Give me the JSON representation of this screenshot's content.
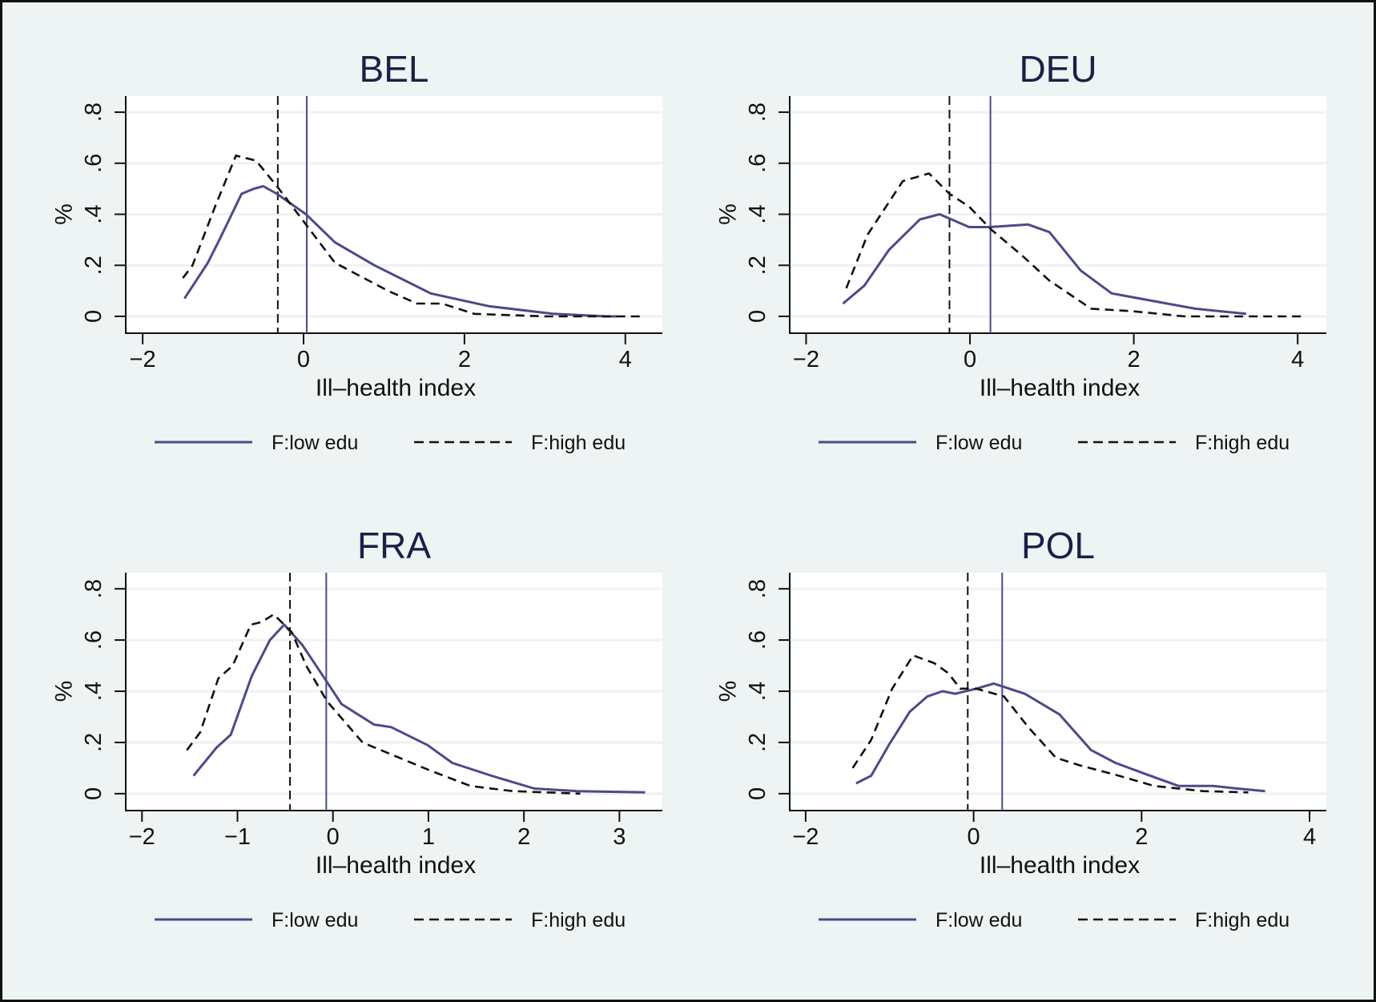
{
  "figure": {
    "background": "#eef4f4",
    "plot_background": "#ffffff",
    "grid_color": "#eef2f2",
    "colors": {
      "low_edu": "#4b4a8a",
      "high_edu": "#111111",
      "title": "#1d1f45"
    }
  },
  "chart_data": [
    {
      "type": "line",
      "title": "BEL",
      "xlabel": "Ill–health index",
      "ylabel": "%",
      "xlim": [
        -2.21,
        4.46
      ],
      "ylim": [
        -0.066,
        0.863
      ],
      "xticks": [
        -2,
        0,
        2,
        4
      ],
      "xtick_labels": [
        "−2",
        "0",
        "2",
        "4"
      ],
      "yticks": [
        0,
        0.2,
        0.4,
        0.6,
        0.8
      ],
      "ytick_labels": [
        "0",
        ".2",
        ".4",
        ".6",
        ".8"
      ],
      "grid": true,
      "legend": {
        "position": "bottom",
        "entries": [
          "F:low edu",
          "F:high edu"
        ]
      },
      "vlines": [
        {
          "series": "F:high edu",
          "x": -0.32,
          "style": "dashed"
        },
        {
          "series": "F:low edu",
          "x": 0.04,
          "style": "solid"
        }
      ],
      "series": [
        {
          "name": "F:low edu",
          "style": "solid",
          "x": [
            -1.48,
            -1.19,
            -1.03,
            -0.77,
            -0.62,
            -0.5,
            -0.33,
            0.03,
            0.39,
            0.88,
            1.58,
            2.3,
            3.1,
            3.76,
            3.9
          ],
          "y": [
            0.07,
            0.21,
            0.31,
            0.48,
            0.5,
            0.51,
            0.48,
            0.4,
            0.29,
            0.2,
            0.09,
            0.04,
            0.01,
            0.0,
            0.0
          ]
        },
        {
          "name": "F:high edu",
          "style": "dashed",
          "x": [
            -1.5,
            -1.38,
            -1.1,
            -0.84,
            -0.59,
            -0.33,
            0.03,
            0.39,
            1.05,
            1.41,
            1.72,
            2.12,
            3.0,
            4.2
          ],
          "y": [
            0.15,
            0.2,
            0.43,
            0.63,
            0.61,
            0.51,
            0.36,
            0.21,
            0.1,
            0.05,
            0.05,
            0.01,
            0.0,
            0.0
          ]
        }
      ]
    },
    {
      "type": "line",
      "title": "DEU",
      "xlabel": "Ill–health index",
      "ylabel": "%",
      "xlim": [
        -2.2,
        4.35
      ],
      "ylim": [
        -0.066,
        0.863
      ],
      "xticks": [
        -2,
        0,
        2,
        4
      ],
      "xtick_labels": [
        "−2",
        "0",
        "2",
        "4"
      ],
      "yticks": [
        0,
        0.2,
        0.4,
        0.6,
        0.8
      ],
      "ytick_labels": [
        "0",
        ".2",
        ".4",
        ".6",
        ".8"
      ],
      "grid": true,
      "legend": {
        "position": "bottom",
        "entries": [
          "F:low edu",
          "F:high edu"
        ]
      },
      "vlines": [
        {
          "series": "F:high edu",
          "x": -0.25,
          "style": "dashed"
        },
        {
          "series": "F:low edu",
          "x": 0.25,
          "style": "solid"
        }
      ],
      "series": [
        {
          "name": "F:low edu",
          "style": "solid",
          "x": [
            -1.55,
            -1.29,
            -0.99,
            -0.61,
            -0.37,
            -0.01,
            0.24,
            0.71,
            0.97,
            1.35,
            1.73,
            2.24,
            2.75,
            3.37
          ],
          "y": [
            0.05,
            0.12,
            0.26,
            0.38,
            0.4,
            0.35,
            0.35,
            0.36,
            0.33,
            0.18,
            0.09,
            0.06,
            0.03,
            0.01
          ]
        },
        {
          "name": "F:high edu",
          "style": "dashed",
          "x": [
            -1.51,
            -1.25,
            -0.82,
            -0.5,
            -0.25,
            -0.01,
            0.26,
            0.63,
            0.97,
            1.48,
            1.99,
            2.62,
            4.09
          ],
          "y": [
            0.11,
            0.32,
            0.53,
            0.56,
            0.48,
            0.43,
            0.34,
            0.24,
            0.14,
            0.03,
            0.02,
            0.0,
            0.0
          ]
        }
      ]
    },
    {
      "type": "line",
      "title": "FRA",
      "xlabel": "Ill–health index",
      "ylabel": "%",
      "xlim": [
        -2.17,
        3.45
      ],
      "ylim": [
        -0.066,
        0.863
      ],
      "xticks": [
        -2,
        -1,
        0,
        1,
        2,
        3
      ],
      "xtick_labels": [
        "−2",
        "−1",
        "0",
        "1",
        "2",
        "3"
      ],
      "yticks": [
        0,
        0.2,
        0.4,
        0.6,
        0.8
      ],
      "ytick_labels": [
        "0",
        ".2",
        ".4",
        ".6",
        ".8"
      ],
      "grid": true,
      "legend": {
        "position": "bottom",
        "entries": [
          "F:low edu",
          "F:high edu"
        ]
      },
      "vlines": [
        {
          "series": "F:high edu",
          "x": -0.45,
          "style": "dashed"
        },
        {
          "series": "F:low edu",
          "x": -0.07,
          "style": "solid"
        }
      ],
      "series": [
        {
          "name": "F:low edu",
          "style": "solid",
          "x": [
            -1.46,
            -1.22,
            -1.07,
            -0.85,
            -0.66,
            -0.51,
            -0.32,
            -0.07,
            0.09,
            0.43,
            0.61,
            0.99,
            1.25,
            1.66,
            2.11,
            2.56,
            3.27
          ],
          "y": [
            0.07,
            0.18,
            0.23,
            0.46,
            0.6,
            0.66,
            0.58,
            0.44,
            0.35,
            0.27,
            0.26,
            0.19,
            0.12,
            0.07,
            0.02,
            0.01,
            0.005
          ]
        },
        {
          "name": "F:high edu",
          "style": "dashed",
          "x": [
            -1.53,
            -1.39,
            -1.2,
            -1.05,
            -0.86,
            -0.75,
            -0.62,
            -0.43,
            -0.28,
            -0.06,
            0.31,
            0.76,
            1.02,
            1.44,
            1.88,
            2.59
          ],
          "y": [
            0.17,
            0.24,
            0.45,
            0.5,
            0.66,
            0.67,
            0.7,
            0.63,
            0.5,
            0.36,
            0.2,
            0.13,
            0.09,
            0.03,
            0.01,
            0.0
          ]
        }
      ]
    },
    {
      "type": "line",
      "title": "POL",
      "xlabel": "Ill–health index",
      "ylabel": "%",
      "xlim": [
        -2.19,
        4.2
      ],
      "ylim": [
        -0.066,
        0.863
      ],
      "xticks": [
        -2,
        0,
        2,
        4
      ],
      "xtick_labels": [
        "−2",
        "0",
        "2",
        "4"
      ],
      "yticks": [
        0,
        0.2,
        0.4,
        0.6,
        0.8
      ],
      "ytick_labels": [
        "0",
        ".2",
        ".4",
        ".6",
        ".8"
      ],
      "grid": true,
      "legend": {
        "position": "bottom",
        "entries": [
          "F:low edu",
          "F:high edu"
        ]
      },
      "vlines": [
        {
          "series": "F:high edu",
          "x": -0.07,
          "style": "dashed"
        },
        {
          "series": "F:low edu",
          "x": 0.34,
          "style": "solid"
        }
      ],
      "series": [
        {
          "name": "F:low edu",
          "style": "solid",
          "x": [
            -1.4,
            -1.22,
            -1.01,
            -0.76,
            -0.55,
            -0.37,
            -0.22,
            0.03,
            0.24,
            0.61,
            1.02,
            1.4,
            1.69,
            2.02,
            2.44,
            2.85,
            3.14,
            3.47
          ],
          "y": [
            0.04,
            0.07,
            0.19,
            0.32,
            0.38,
            0.4,
            0.39,
            0.41,
            0.43,
            0.39,
            0.31,
            0.17,
            0.12,
            0.08,
            0.03,
            0.03,
            0.02,
            0.01
          ]
        },
        {
          "name": "F:high edu",
          "style": "dashed",
          "x": [
            -1.44,
            -1.22,
            -0.97,
            -0.72,
            -0.47,
            -0.3,
            -0.16,
            0.03,
            0.36,
            0.65,
            0.98,
            1.27,
            1.73,
            2.15,
            2.73,
            3.27
          ],
          "y": [
            0.1,
            0.21,
            0.41,
            0.54,
            0.51,
            0.47,
            0.41,
            0.41,
            0.38,
            0.26,
            0.14,
            0.11,
            0.07,
            0.03,
            0.01,
            0.005
          ]
        }
      ]
    }
  ]
}
